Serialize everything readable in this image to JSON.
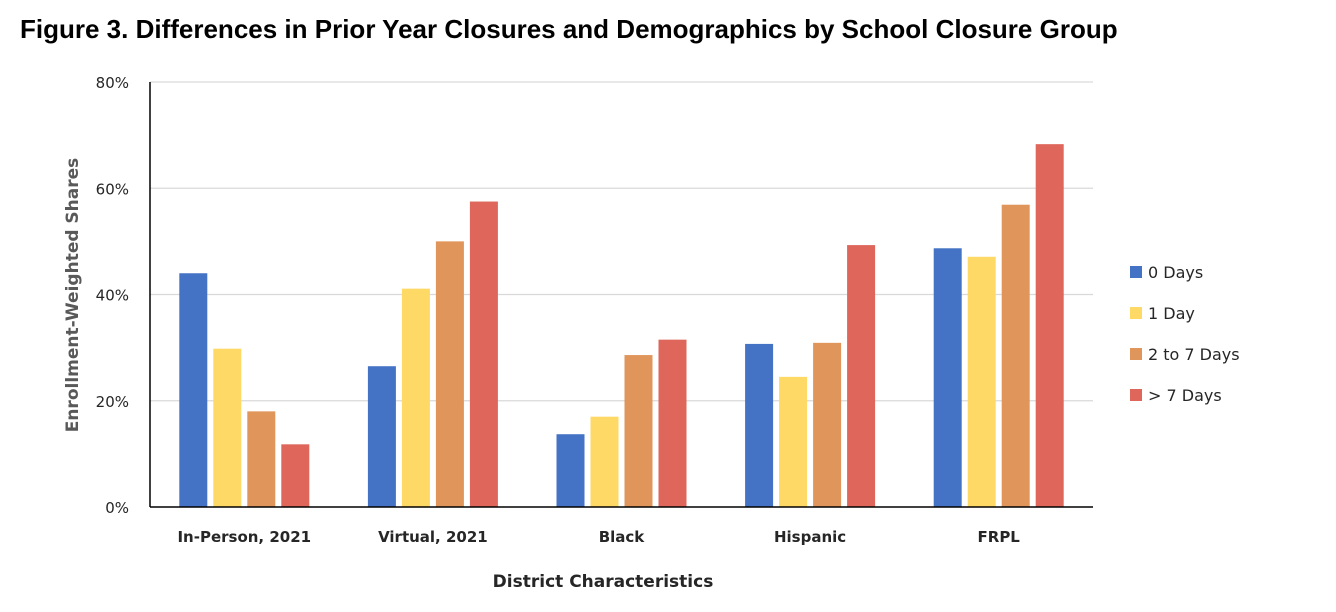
{
  "title": "Figure 3. Differences in Prior Year Closures and Demographics by School Closure Group",
  "chart_data": {
    "type": "bar",
    "xlabel": "District Characteristics",
    "ylabel": "Enrollment-Weighted Shares",
    "ylim": [
      0,
      0.8
    ],
    "yticks": [
      0,
      0.2,
      0.4,
      0.6,
      0.8
    ],
    "ytick_labels": [
      "0%",
      "20%",
      "40%",
      "60%",
      "80%"
    ],
    "grid": true,
    "legend_position": "right",
    "categories": [
      "In-Person, 2021",
      "Virtual, 2021",
      "Black",
      "Hispanic",
      "FRPL"
    ],
    "series": [
      {
        "name": "0 Days",
        "color": "#4472C4",
        "values": [
          0.44,
          0.265,
          0.137,
          0.307,
          0.487
        ]
      },
      {
        "name": "1 Day",
        "color": "#FFD966",
        "values": [
          0.298,
          0.411,
          0.17,
          0.245,
          0.471
        ]
      },
      {
        "name": "2 to 7 Days",
        "color": "#E0955A",
        "values": [
          0.18,
          0.5,
          0.286,
          0.309,
          0.569
        ]
      },
      {
        "name": "> 7 Days",
        "color": "#DE665B",
        "values": [
          0.118,
          0.575,
          0.315,
          0.493,
          0.683
        ]
      }
    ]
  }
}
